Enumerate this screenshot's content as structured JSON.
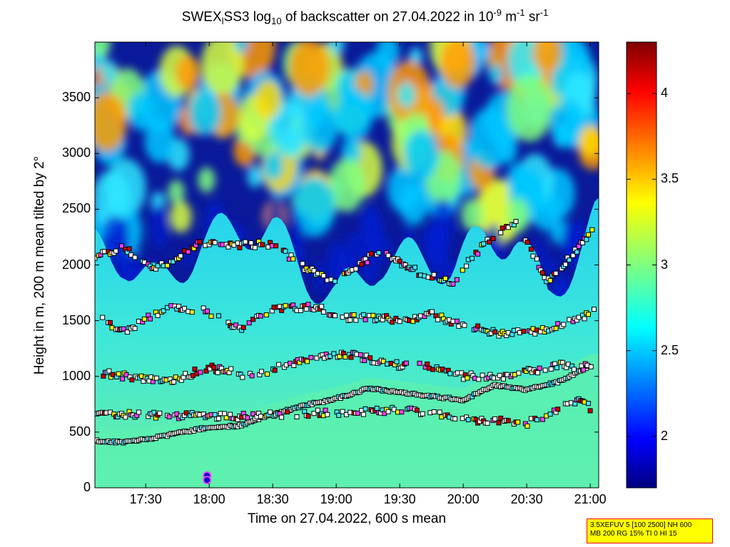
{
  "title": {
    "part1": "SWEX",
    "sub1": "l",
    "part2": "SS3 log",
    "sub2": "10",
    "part3": " of backscatter on 27.04.2022 in 10",
    "sup1": "-9",
    "part4": " m",
    "sup2": "-1",
    "part5": " sr",
    "sup3": "-1"
  },
  "xlabel": "Time on 27.04.2022, 600 s mean",
  "ylabel": "Height in m, 200 m mean tilted by 2°",
  "infobox": {
    "line1": "3.5XEFUV 5 [100 2500] NH 600",
    "line2": "MB 200 RG 15% TI 0 HI 15"
  },
  "colors": {
    "low": "#00007f",
    "mid": "#7fff7f",
    "high": "#7f0000",
    "cloud_marker": "#cc0000"
  },
  "chart_data": {
    "type": "heatmap",
    "xlim": [
      "17:06",
      "21:04"
    ],
    "ylim": [
      0,
      4000
    ],
    "xticks": [
      "17:30",
      "18:00",
      "18:30",
      "19:00",
      "19:30",
      "20:00",
      "20:30",
      "21:00"
    ],
    "xtick_minutes": [
      1050,
      1080,
      1110,
      1140,
      1170,
      1200,
      1230,
      1260
    ],
    "yticks": [
      0,
      500,
      1000,
      1500,
      2000,
      2500,
      3000,
      3500
    ],
    "colorbar": {
      "range": [
        1.7,
        4.3
      ],
      "ticks": [
        2,
        2.5,
        3,
        3.5,
        4
      ],
      "tick_labels": [
        "2",
        "2.5",
        "3",
        "3.5",
        "4"
      ]
    },
    "layers": [
      {
        "name": "",
        "points": [
          [
            1026,
            420
          ],
          [
            1040,
            410
          ],
          [
            1055,
            450
          ],
          [
            1070,
            510
          ],
          [
            1080,
            540
          ],
          [
            1095,
            560
          ],
          [
            1110,
            660
          ],
          [
            1125,
            740
          ],
          [
            1140,
            800
          ],
          [
            1155,
            890
          ],
          [
            1170,
            860
          ],
          [
            1185,
            820
          ],
          [
            1200,
            790
          ],
          [
            1215,
            920
          ],
          [
            1230,
            880
          ],
          [
            1245,
            950
          ],
          [
            1260,
            1100
          ]
        ]
      },
      {
        "name": "",
        "points": [
          [
            1026,
            650
          ],
          [
            1040,
            660
          ],
          [
            1090,
            640
          ],
          [
            1170,
            700
          ],
          [
            1200,
            620
          ],
          [
            1230,
            580
          ],
          [
            1255,
            790
          ],
          [
            1262,
            690
          ]
        ]
      },
      {
        "name": "",
        "points": [
          [
            1030,
            1030
          ],
          [
            1060,
            950
          ],
          [
            1080,
            1080
          ],
          [
            1100,
            1000
          ],
          [
            1125,
            1150
          ],
          [
            1145,
            1200
          ],
          [
            1170,
            1100
          ],
          [
            1185,
            1090
          ],
          [
            1200,
            1000
          ],
          [
            1220,
            1000
          ],
          [
            1245,
            1100
          ],
          [
            1262,
            1080
          ]
        ]
      },
      {
        "name": "",
        "points": [
          [
            1026,
            1540
          ],
          [
            1040,
            1400
          ],
          [
            1060,
            1620
          ],
          [
            1078,
            1600
          ],
          [
            1095,
            1410
          ],
          [
            1110,
            1620
          ],
          [
            1130,
            1620
          ],
          [
            1145,
            1530
          ],
          [
            1160,
            1520
          ],
          [
            1175,
            1500
          ],
          [
            1185,
            1560
          ],
          [
            1200,
            1450
          ],
          [
            1220,
            1380
          ],
          [
            1240,
            1420
          ],
          [
            1262,
            1580
          ]
        ]
      },
      {
        "name": "",
        "points": [
          [
            1026,
            2070
          ],
          [
            1040,
            2150
          ],
          [
            1055,
            1960
          ],
          [
            1075,
            2200
          ],
          [
            1095,
            2180
          ],
          [
            1110,
            2190
          ],
          [
            1125,
            1970
          ],
          [
            1140,
            1860
          ],
          [
            1160,
            2120
          ],
          [
            1180,
            1920
          ],
          [
            1195,
            1850
          ],
          [
            1210,
            2200
          ],
          [
            1225,
            2400
          ],
          [
            1240,
            1850
          ],
          [
            1250,
            2060
          ],
          [
            1262,
            2330
          ]
        ]
      }
    ],
    "low_markers": [
      [
        1079,
        110
      ],
      [
        1079,
        70
      ]
    ]
  }
}
